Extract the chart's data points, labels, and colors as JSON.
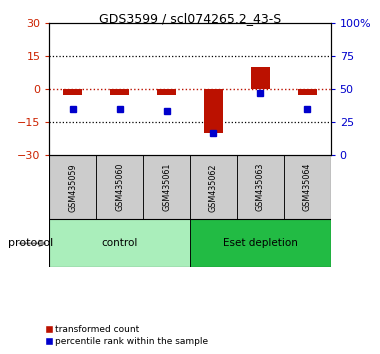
{
  "title": "GDS3599 / scl074265.2_43-S",
  "samples": [
    "GSM435059",
    "GSM435060",
    "GSM435061",
    "GSM435062",
    "GSM435063",
    "GSM435064"
  ],
  "transformed_counts": [
    -2.5,
    -2.5,
    -2.5,
    -20.0,
    10.0,
    -2.5
  ],
  "percentile_ranks": [
    35.0,
    35.0,
    33.0,
    17.0,
    47.0,
    35.0
  ],
  "ylim_left": [
    -30,
    30
  ],
  "ylim_right": [
    0,
    100
  ],
  "yticks_left": [
    -30,
    -15,
    0,
    15,
    30
  ],
  "yticks_right": [
    0,
    25,
    50,
    75,
    100
  ],
  "hlines_dotted_black": [
    -15,
    15
  ],
  "hline_red_dashed": 0,
  "bar_color": "#bb1100",
  "dot_color": "#0000cc",
  "left_axis_color": "#cc2200",
  "right_axis_color": "#0000cc",
  "groups": [
    {
      "label": "control",
      "indices": [
        0,
        1,
        2
      ],
      "light_color": "#aaeebb",
      "dark_color": "#44cc66"
    },
    {
      "label": "Eset depletion",
      "indices": [
        3,
        4,
        5
      ],
      "light_color": "#44dd66",
      "dark_color": "#22bb44"
    }
  ],
  "protocol_label": "protocol",
  "legend": [
    {
      "label": "transformed count",
      "color": "#bb1100"
    },
    {
      "label": "percentile rank within the sample",
      "color": "#0000cc"
    }
  ],
  "sample_box_color": "#cccccc",
  "background_color": "#ffffff"
}
